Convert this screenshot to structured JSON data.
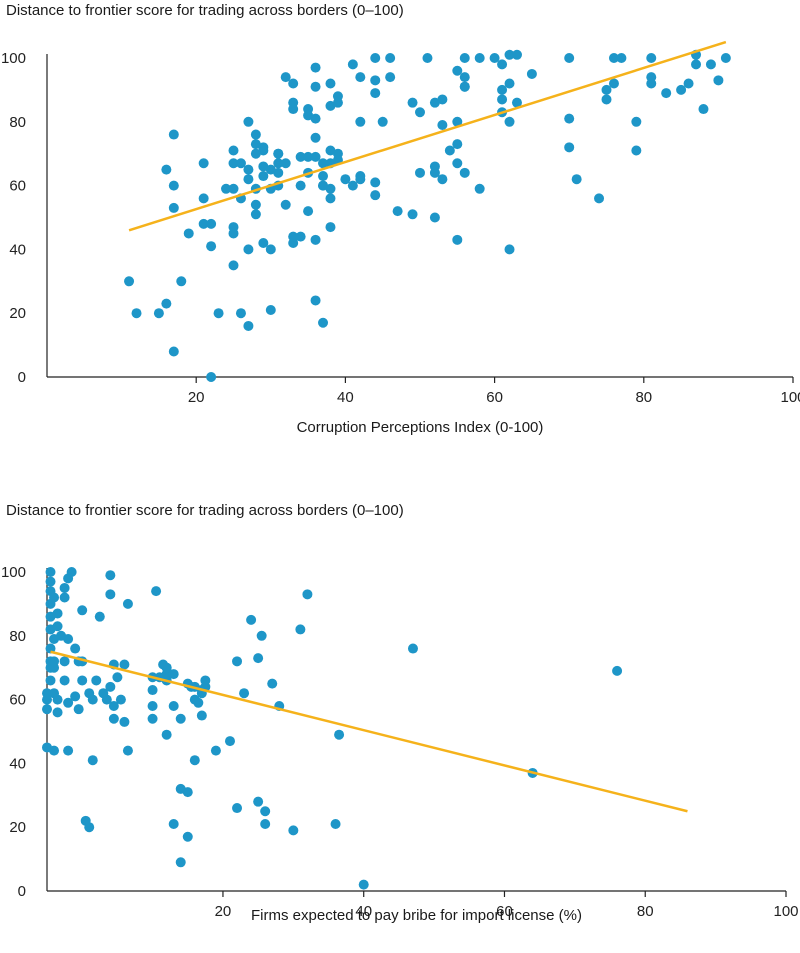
{
  "chart_data": [
    {
      "type": "scatter",
      "title": "Distance to frontier score for trading across borders (0–100)",
      "xlabel": "Corruption Perceptions Index (0-100)",
      "ylabel": "Distance to frontier score for trading across borders (0–100)",
      "xlim": [
        0,
        100
      ],
      "ylim": [
        0,
        100
      ],
      "xticks": [
        20,
        40,
        60,
        80,
        100
      ],
      "yticks": [
        0,
        20,
        40,
        60,
        80,
        100
      ],
      "grid": false,
      "colors": {
        "points": "#1e96c8",
        "trend": "#f5b21b",
        "axis": "#222222"
      },
      "trendline": {
        "x": [
          11,
          91
        ],
        "y": [
          46,
          105
        ]
      },
      "points": [
        [
          11,
          30
        ],
        [
          12,
          20
        ],
        [
          15,
          20
        ],
        [
          16,
          23
        ],
        [
          17,
          8
        ],
        [
          18,
          30
        ],
        [
          16,
          65
        ],
        [
          17,
          76
        ],
        [
          17,
          53
        ],
        [
          17,
          60
        ],
        [
          19,
          45
        ],
        [
          21,
          48
        ],
        [
          21,
          56
        ],
        [
          21,
          67
        ],
        [
          22,
          0
        ],
        [
          22,
          41
        ],
        [
          22,
          48
        ],
        [
          23,
          20
        ],
        [
          24,
          59
        ],
        [
          25,
          71
        ],
        [
          25,
          67
        ],
        [
          25,
          59
        ],
        [
          25,
          45
        ],
        [
          25,
          47
        ],
        [
          25,
          35
        ],
        [
          26,
          20
        ],
        [
          26,
          56
        ],
        [
          26,
          67
        ],
        [
          27,
          80
        ],
        [
          27,
          65
        ],
        [
          27,
          16
        ],
        [
          27,
          40
        ],
        [
          27,
          62
        ],
        [
          28,
          70
        ],
        [
          28,
          76
        ],
        [
          28,
          73
        ],
        [
          28,
          59
        ],
        [
          28,
          51
        ],
        [
          28,
          54
        ],
        [
          29,
          66
        ],
        [
          29,
          71
        ],
        [
          29,
          72
        ],
        [
          29,
          42
        ],
        [
          29,
          63
        ],
        [
          30,
          59
        ],
        [
          30,
          40
        ],
        [
          30,
          21
        ],
        [
          30,
          65
        ],
        [
          31,
          70
        ],
        [
          31,
          64
        ],
        [
          31,
          70
        ],
        [
          31,
          67
        ],
        [
          31,
          60
        ],
        [
          32,
          54
        ],
        [
          32,
          67
        ],
        [
          32,
          94
        ],
        [
          33,
          92
        ],
        [
          33,
          84
        ],
        [
          33,
          86
        ],
        [
          33,
          42
        ],
        [
          33,
          44
        ],
        [
          34,
          60
        ],
        [
          34,
          69
        ],
        [
          34,
          44
        ],
        [
          35,
          84
        ],
        [
          35,
          82
        ],
        [
          35,
          69
        ],
        [
          35,
          64
        ],
        [
          35,
          52
        ],
        [
          36,
          97
        ],
        [
          36,
          91
        ],
        [
          36,
          81
        ],
        [
          36,
          75
        ],
        [
          36,
          69
        ],
        [
          36,
          24
        ],
        [
          36,
          43
        ],
        [
          37,
          17
        ],
        [
          37,
          63
        ],
        [
          37,
          60
        ],
        [
          37,
          67
        ],
        [
          37,
          60
        ],
        [
          38,
          92
        ],
        [
          38,
          85
        ],
        [
          38,
          71
        ],
        [
          38,
          67
        ],
        [
          38,
          56
        ],
        [
          38,
          59
        ],
        [
          38,
          47
        ],
        [
          39,
          88
        ],
        [
          39,
          86
        ],
        [
          39,
          70
        ],
        [
          39,
          68
        ],
        [
          40,
          62
        ],
        [
          41,
          98
        ],
        [
          41,
          60
        ],
        [
          42,
          80
        ],
        [
          42,
          62
        ],
        [
          42,
          63
        ],
        [
          42,
          94
        ],
        [
          44,
          100
        ],
        [
          44,
          93
        ],
        [
          44,
          89
        ],
        [
          44,
          61
        ],
        [
          44,
          57
        ],
        [
          45,
          80
        ],
        [
          46,
          100
        ],
        [
          46,
          94
        ],
        [
          47,
          52
        ],
        [
          49,
          86
        ],
        [
          49,
          51
        ],
        [
          50,
          83
        ],
        [
          50,
          64
        ],
        [
          51,
          100
        ],
        [
          52,
          86
        ],
        [
          52,
          66
        ],
        [
          52,
          64
        ],
        [
          52,
          50
        ],
        [
          53,
          87
        ],
        [
          53,
          79
        ],
        [
          53,
          62
        ],
        [
          54,
          71
        ],
        [
          55,
          80
        ],
        [
          55,
          96
        ],
        [
          55,
          73
        ],
        [
          55,
          67
        ],
        [
          55,
          43
        ],
        [
          56,
          100
        ],
        [
          56,
          94
        ],
        [
          56,
          91
        ],
        [
          56,
          91
        ],
        [
          56,
          64
        ],
        [
          58,
          100
        ],
        [
          58,
          59
        ],
        [
          60,
          100
        ],
        [
          61,
          98
        ],
        [
          61,
          90
        ],
        [
          61,
          87
        ],
        [
          61,
          83
        ],
        [
          62,
          101
        ],
        [
          62,
          92
        ],
        [
          62,
          80
        ],
        [
          62,
          40
        ],
        [
          63,
          101
        ],
        [
          63,
          86
        ],
        [
          65,
          95
        ],
        [
          70,
          100
        ],
        [
          70,
          81
        ],
        [
          70,
          72
        ],
        [
          71,
          62
        ],
        [
          74,
          56
        ],
        [
          75,
          90
        ],
        [
          75,
          87
        ],
        [
          76,
          92
        ],
        [
          76,
          100
        ],
        [
          77,
          100
        ],
        [
          79,
          80
        ],
        [
          79,
          71
        ],
        [
          81,
          100
        ],
        [
          81,
          94
        ],
        [
          81,
          92
        ],
        [
          83,
          89
        ],
        [
          85,
          90
        ],
        [
          86,
          92
        ],
        [
          87,
          101
        ],
        [
          87,
          98
        ],
        [
          88,
          84
        ],
        [
          89,
          98
        ],
        [
          90,
          93
        ],
        [
          91,
          100
        ]
      ]
    },
    {
      "type": "scatter",
      "title": "Distance to frontier score for trading across borders (0–100)",
      "xlabel": "Firms expected to pay bribe for import license (%)",
      "ylabel": "Distance to frontier score for trading across borders (0–100)",
      "xlim": [
        -5,
        100
      ],
      "ylim": [
        0,
        100
      ],
      "xticks": [
        20,
        40,
        60,
        80,
        100
      ],
      "yticks": [
        0,
        20,
        40,
        60,
        80,
        100
      ],
      "grid": false,
      "colors": {
        "points": "#1e96c8",
        "trend": "#f5b21b",
        "axis": "#222222"
      },
      "trendline": {
        "x": [
          -4.5,
          86
        ],
        "y": [
          75,
          25
        ]
      },
      "points": [
        [
          -5,
          62
        ],
        [
          -5,
          45
        ],
        [
          -5,
          57
        ],
        [
          -5,
          60
        ],
        [
          -4.5,
          100
        ],
        [
          -4.5,
          97
        ],
        [
          -4.5,
          94
        ],
        [
          -4.5,
          90
        ],
        [
          -4.5,
          86
        ],
        [
          -4.5,
          82
        ],
        [
          -4.5,
          76
        ],
        [
          -4.5,
          72
        ],
        [
          -4.5,
          70
        ],
        [
          -4.5,
          66
        ],
        [
          -4,
          92
        ],
        [
          -4,
          79
        ],
        [
          -4,
          62
        ],
        [
          -4,
          44
        ],
        [
          -4,
          70
        ],
        [
          -4,
          72
        ],
        [
          -3.5,
          83
        ],
        [
          -3.5,
          87
        ],
        [
          -3.5,
          56
        ],
        [
          -3.5,
          60
        ],
        [
          -3,
          80
        ],
        [
          -2.5,
          95
        ],
        [
          -2.5,
          92
        ],
        [
          -2.5,
          72
        ],
        [
          -2.5,
          66
        ],
        [
          -2,
          98
        ],
        [
          -2,
          79
        ],
        [
          -2,
          44
        ],
        [
          -2,
          59
        ],
        [
          -1.5,
          100
        ],
        [
          -1,
          76
        ],
        [
          -1,
          61
        ],
        [
          -0.5,
          72
        ],
        [
          -0.5,
          57
        ],
        [
          0,
          88
        ],
        [
          0,
          72
        ],
        [
          0,
          66
        ],
        [
          0.5,
          22
        ],
        [
          1,
          62
        ],
        [
          1,
          20
        ],
        [
          1.5,
          60
        ],
        [
          1.5,
          41
        ],
        [
          2,
          66
        ],
        [
          2.5,
          86
        ],
        [
          3,
          62
        ],
        [
          3.5,
          60
        ],
        [
          4,
          99
        ],
        [
          4,
          93
        ],
        [
          4,
          64
        ],
        [
          4.5,
          71
        ],
        [
          4.5,
          54
        ],
        [
          4.5,
          58
        ],
        [
          5,
          67
        ],
        [
          5.5,
          60
        ],
        [
          6,
          71
        ],
        [
          6,
          53
        ],
        [
          6.5,
          90
        ],
        [
          6.5,
          44
        ],
        [
          10,
          58
        ],
        [
          10,
          54
        ],
        [
          10,
          63
        ],
        [
          10,
          67
        ],
        [
          10.5,
          94
        ],
        [
          11,
          67
        ],
        [
          11.5,
          71
        ],
        [
          12,
          68
        ],
        [
          12,
          49
        ],
        [
          12,
          70
        ],
        [
          12,
          66
        ],
        [
          12,
          70
        ],
        [
          13,
          21
        ],
        [
          13,
          58
        ],
        [
          13,
          68
        ],
        [
          14,
          54
        ],
        [
          14,
          32
        ],
        [
          14,
          9
        ],
        [
          15,
          31
        ],
        [
          15,
          65
        ],
        [
          15,
          17
        ],
        [
          15.5,
          64
        ],
        [
          16,
          64
        ],
        [
          16,
          60
        ],
        [
          16,
          41
        ],
        [
          16.5,
          59
        ],
        [
          17,
          62
        ],
        [
          17,
          55
        ],
        [
          17,
          63
        ],
        [
          17.5,
          66
        ],
        [
          17.5,
          64
        ],
        [
          19,
          44
        ],
        [
          21,
          47
        ],
        [
          22,
          72
        ],
        [
          22,
          26
        ],
        [
          23,
          62
        ],
        [
          24,
          85
        ],
        [
          25,
          28
        ],
        [
          25,
          73
        ],
        [
          25.5,
          80
        ],
        [
          26,
          21
        ],
        [
          26,
          25
        ],
        [
          27,
          65
        ],
        [
          28,
          58
        ],
        [
          30,
          19
        ],
        [
          31,
          82
        ],
        [
          32,
          93
        ],
        [
          36,
          21
        ],
        [
          36.5,
          49
        ],
        [
          40,
          2
        ],
        [
          47,
          76
        ],
        [
          64,
          37
        ],
        [
          76,
          69
        ]
      ]
    }
  ]
}
